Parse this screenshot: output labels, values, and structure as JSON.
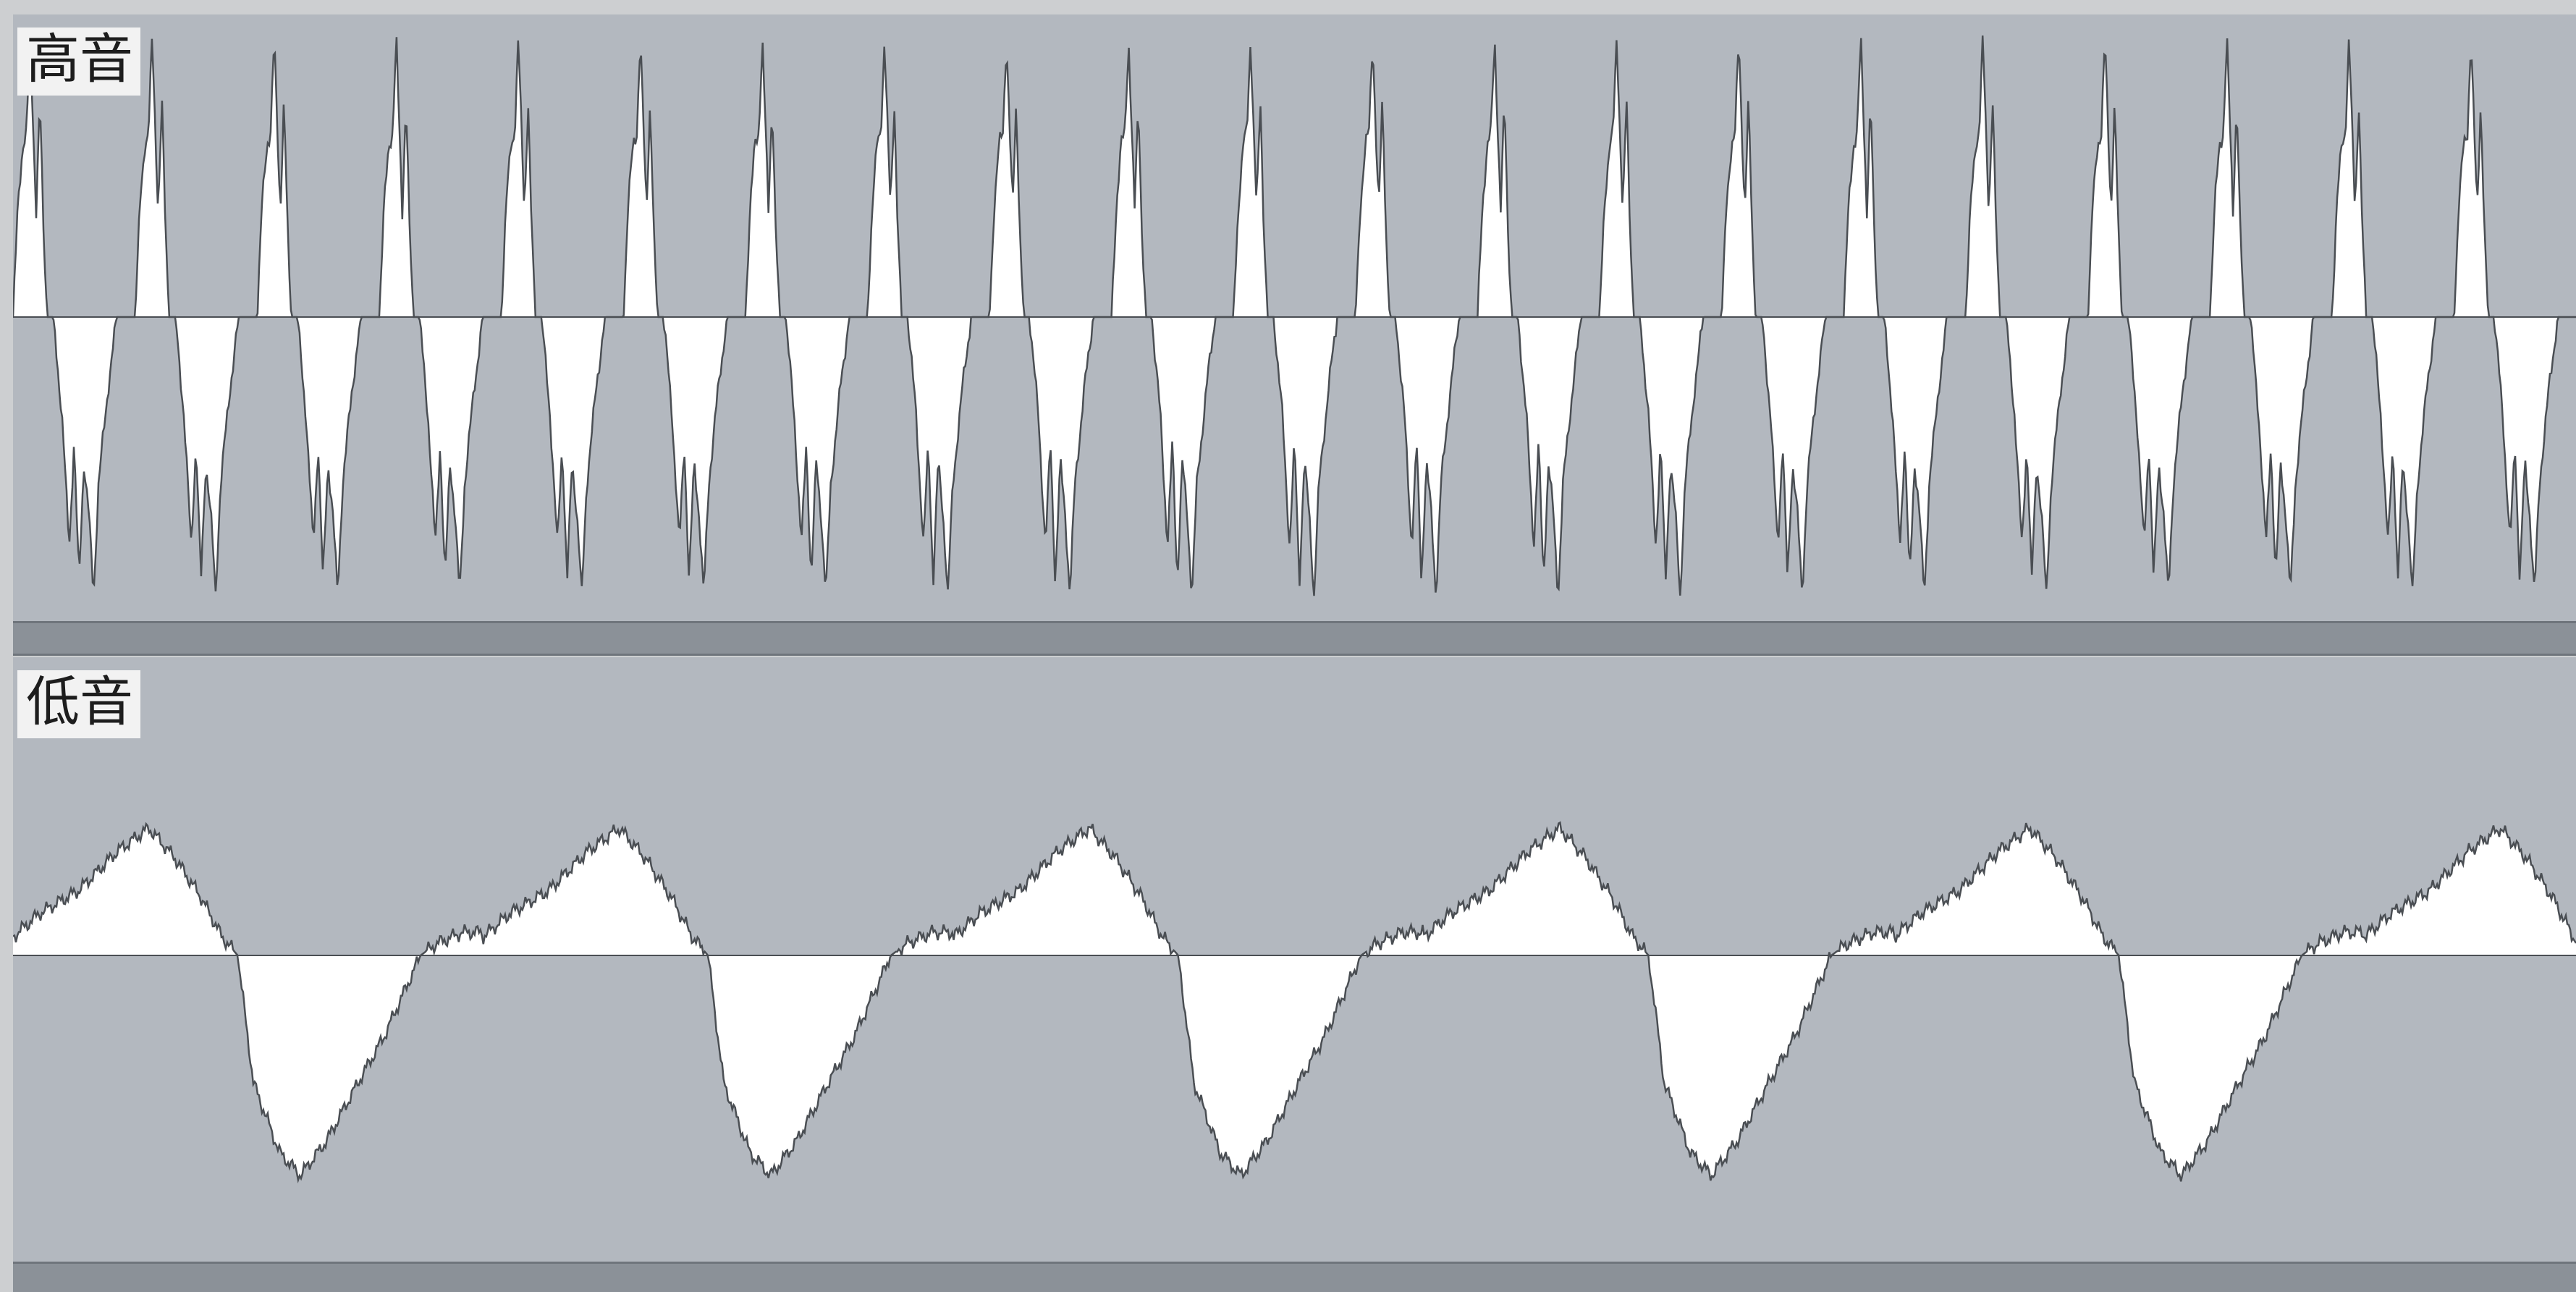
{
  "panels": [
    {
      "id": "treble",
      "label": "高音"
    },
    {
      "id": "bass",
      "label": "低音"
    }
  ],
  "colors": {
    "background": "#b3b8bf",
    "waveform_fill": "#ffffff",
    "waveform_stroke": "#4a4e53",
    "zero_line": "#4a4e53",
    "divider_bar": "#8b9198"
  },
  "chart_data": [
    {
      "type": "area",
      "panel": "treble",
      "periods": 21,
      "cycle_envelope": [
        [
          0.0,
          0.0
        ],
        [
          0.04,
          0.4
        ],
        [
          0.08,
          0.62
        ],
        [
          0.11,
          0.66
        ],
        [
          0.14,
          1.0
        ],
        [
          0.17,
          0.62
        ],
        [
          0.19,
          0.38
        ],
        [
          0.22,
          0.78
        ],
        [
          0.25,
          0.3
        ],
        [
          0.28,
          0.0
        ],
        [
          0.33,
          0.0
        ],
        [
          0.4,
          -0.35
        ],
        [
          0.46,
          -0.82
        ],
        [
          0.5,
          -0.45
        ],
        [
          0.54,
          -0.95
        ],
        [
          0.58,
          -0.52
        ],
        [
          0.62,
          -0.7
        ],
        [
          0.66,
          -1.0
        ],
        [
          0.7,
          -0.6
        ],
        [
          0.78,
          -0.25
        ],
        [
          0.85,
          0.0
        ],
        [
          1.0,
          0.0
        ]
      ]
    },
    {
      "type": "area",
      "panel": "bass",
      "periods": 5.45,
      "cycle_envelope": [
        [
          0.0,
          0.08
        ],
        [
          0.1,
          0.18
        ],
        [
          0.25,
          0.28
        ],
        [
          0.4,
          0.45
        ],
        [
          0.52,
          0.55
        ],
        [
          0.62,
          0.42
        ],
        [
          0.72,
          0.25
        ],
        [
          0.8,
          0.08
        ],
        [
          0.86,
          0.0
        ],
        [
          0.92,
          -0.55
        ],
        [
          1.02,
          -0.85
        ],
        [
          1.1,
          -0.95
        ],
        [
          1.2,
          -0.8
        ],
        [
          1.32,
          -0.55
        ],
        [
          1.42,
          -0.35
        ],
        [
          1.5,
          -0.15
        ],
        [
          1.56,
          0.0
        ],
        [
          1.62,
          0.05
        ],
        [
          1.72,
          0.1
        ],
        [
          1.8,
          0.1
        ]
      ]
    }
  ]
}
